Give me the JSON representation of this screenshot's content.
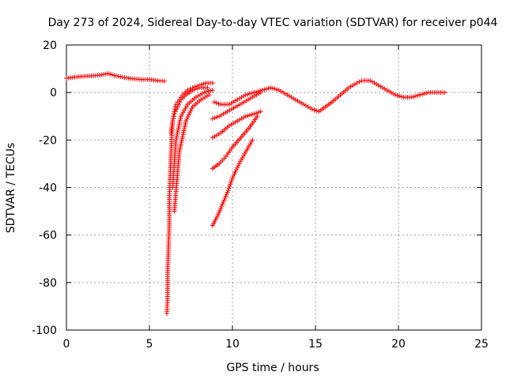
{
  "chart_data": {
    "type": "scatter",
    "title": "Day 273 of 2024, Sidereal Day-to-day VTEC variation (SDTVAR) for receiver p044",
    "xlabel": "GPS time / hours",
    "ylabel": "SDTVAR / TECUs",
    "xlim": [
      0,
      25
    ],
    "ylim": [
      -100,
      20
    ],
    "xticks": [
      0,
      5,
      10,
      15,
      20,
      25
    ],
    "yticks": [
      -100,
      -80,
      -60,
      -40,
      -20,
      0,
      20
    ],
    "grid": true,
    "marker": "plus",
    "color": "#ff0000",
    "series": [
      {
        "name": "early-flat",
        "x": [
          0,
          0.5,
          1,
          1.5,
          2,
          2.5,
          3,
          3.5,
          4,
          4.5,
          5,
          5.5,
          5.9
        ],
        "y": [
          6,
          6.5,
          6.8,
          7,
          7.3,
          8,
          7,
          6.3,
          5.8,
          5.5,
          5.5,
          5,
          4.8
        ]
      },
      {
        "name": "steep-dip",
        "x": [
          6.05,
          6.1,
          6.1,
          6.15,
          6.2,
          6.2,
          6.25,
          6.3,
          6.35,
          6.4,
          6.5,
          6.6,
          6.8,
          7.0,
          7.3,
          7.6,
          8.0,
          8.4,
          8.8
        ],
        "y": [
          -93,
          -85,
          -75,
          -65,
          -55,
          -45,
          -35,
          -25,
          -18,
          -12,
          -8,
          -5,
          -3,
          -1,
          1,
          2,
          3,
          4,
          4
        ]
      },
      {
        "name": "arc-2",
        "x": [
          6.3,
          6.4,
          6.5,
          6.7,
          6.9,
          7.2,
          7.6,
          8.0,
          8.5
        ],
        "y": [
          -17,
          -12,
          -9,
          -6,
          -3,
          -1,
          1,
          2,
          2
        ]
      },
      {
        "name": "arc-3",
        "x": [
          6.4,
          6.6,
          6.9,
          7.3,
          7.8,
          8.3,
          8.8
        ],
        "y": [
          -40,
          -20,
          -10,
          -5,
          -2,
          0,
          1
        ]
      },
      {
        "name": "arc-4",
        "x": [
          6.5,
          6.8,
          7.2,
          7.6,
          8.1,
          8.6
        ],
        "y": [
          -50,
          -25,
          -12,
          -6,
          -3,
          -1
        ]
      },
      {
        "name": "mid-1",
        "x": [
          8.9,
          9.3,
          9.8,
          10.3,
          10.8,
          11.3,
          11.8,
          12.3,
          12.8,
          13.3,
          13.8,
          14.3,
          14.8,
          15.2,
          15.6,
          16.0,
          16.5,
          17.0,
          17.5,
          17.8,
          18.3,
          18.8,
          19.3,
          19.8,
          20.3,
          20.8,
          21.3,
          21.8,
          22.3,
          22.8
        ],
        "y": [
          -4,
          -5,
          -5,
          -3,
          -1,
          0,
          1,
          2,
          1,
          -1,
          -3,
          -5,
          -7,
          -8,
          -6,
          -4,
          -1,
          2,
          4,
          5,
          5,
          3,
          1,
          -1,
          -2,
          -2,
          -1,
          0,
          0,
          0
        ]
      },
      {
        "name": "mid-2",
        "x": [
          8.8,
          9.2,
          9.7,
          10.2,
          10.7,
          11.2,
          11.7
        ],
        "y": [
          -11,
          -10,
          -8,
          -6,
          -4,
          -2,
          0
        ]
      },
      {
        "name": "mid-3",
        "x": [
          8.8,
          9.3,
          9.8,
          10.3,
          10.8,
          11.3,
          11.7
        ],
        "y": [
          -19,
          -17,
          -14,
          -12,
          -10,
          -9,
          -8
        ]
      },
      {
        "name": "mid-4",
        "x": [
          8.8,
          9.2,
          9.6,
          10.0,
          10.5,
          11.0,
          11.5
        ],
        "y": [
          -32,
          -30,
          -27,
          -23,
          -19,
          -15,
          -10
        ]
      },
      {
        "name": "mid-5",
        "x": [
          8.8,
          9.1,
          9.4,
          9.7,
          10.0,
          10.4,
          10.8,
          11.2
        ],
        "y": [
          -56,
          -52,
          -47,
          -42,
          -36,
          -30,
          -25,
          -20
        ]
      }
    ]
  }
}
